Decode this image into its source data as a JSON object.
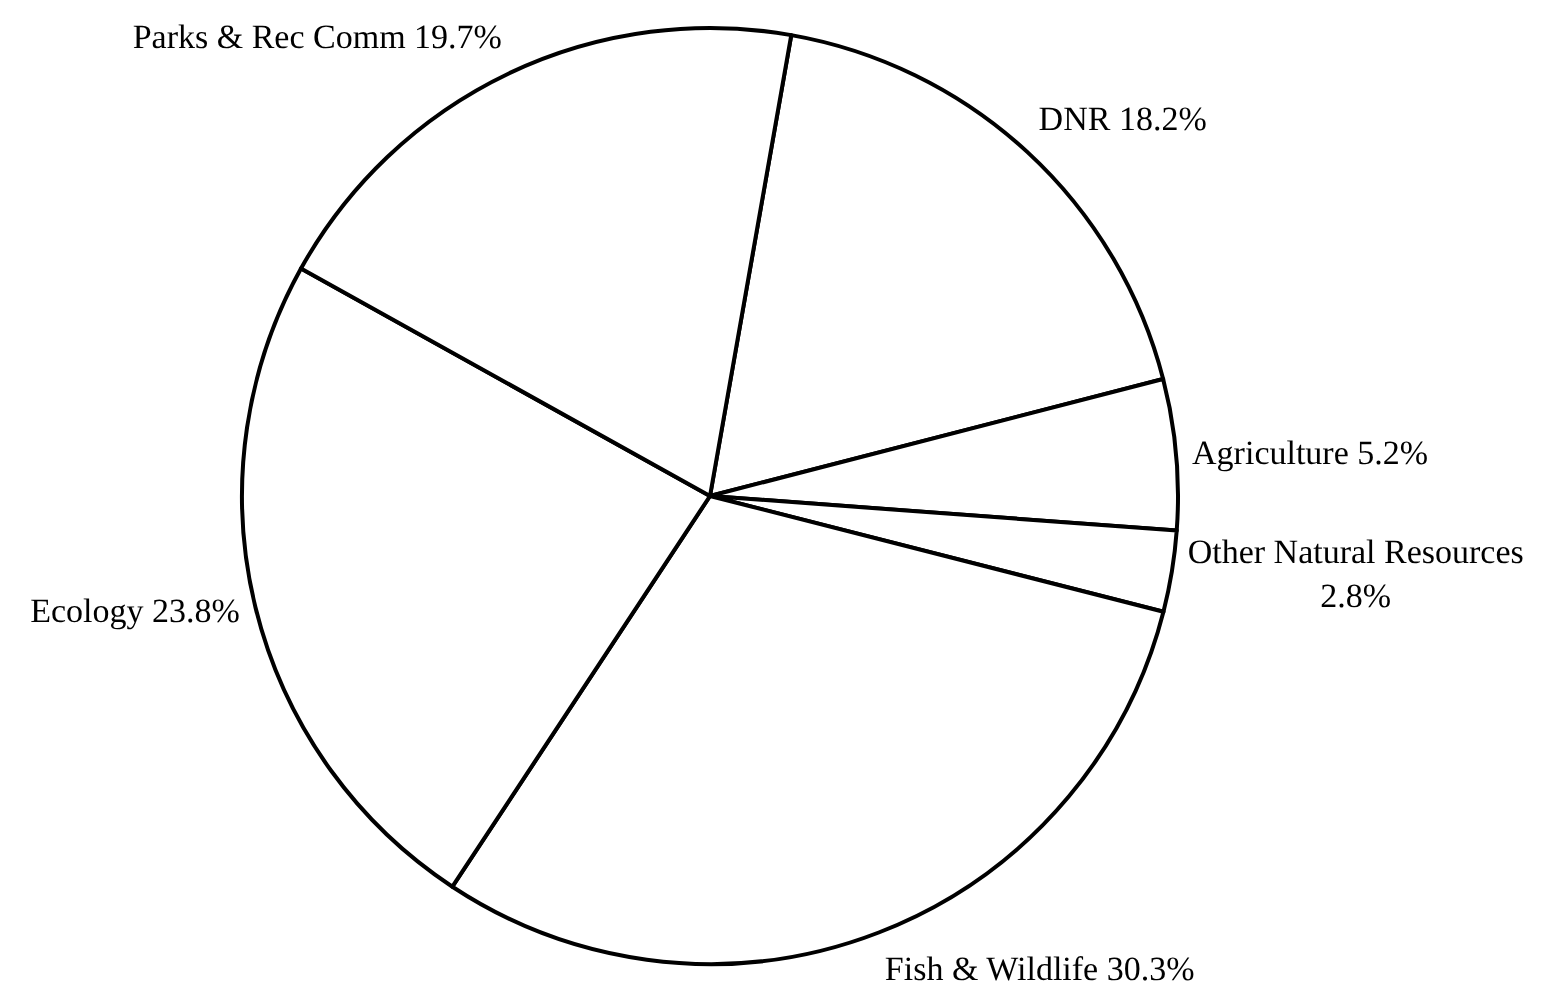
{
  "chart_data": {
    "type": "pie",
    "categories": [
      "DNR",
      "Agriculture",
      "Other Natural Resources",
      "Fish & Wildlife",
      "Ecology",
      "Parks & Rec Comm"
    ],
    "values": [
      18.2,
      5.2,
      2.8,
      30.3,
      23.8,
      19.7
    ],
    "value_labels": [
      "18.2%",
      "5.2%",
      "2.8%",
      "30.3%",
      "23.8%",
      "19.7%"
    ],
    "colors": [
      "#ffffff",
      "#ffffff",
      "#ffffff",
      "#ffffff",
      "#ffffff",
      "#ffffff"
    ],
    "legend": false
  }
}
